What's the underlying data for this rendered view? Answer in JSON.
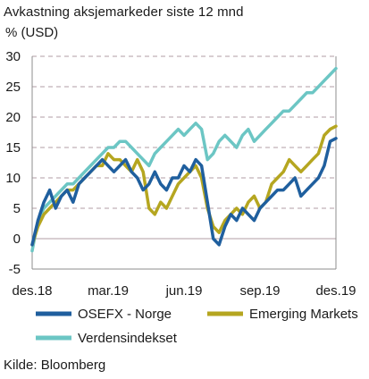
{
  "header": {
    "title": "Avkastning aksjemarkeder siste 12 mnd",
    "unit": "% (USD)"
  },
  "footer": {
    "source": "Kilde: Bloomberg"
  },
  "colors": {
    "osefx": "#1f5f9e",
    "em": "#b5a620",
    "world": "#6cc6c4",
    "grid": "#b09ca6",
    "axis": "#8c8c8c"
  },
  "chart_data": {
    "type": "line",
    "title": "Avkastning aksjemarkeder siste 12 mnd",
    "ylabel": "% (USD)",
    "ylim": [
      -5,
      30
    ],
    "yticks": [
      -5,
      0,
      5,
      10,
      15,
      20,
      25,
      30
    ],
    "xlim": [
      0,
      52
    ],
    "xtick_positions": [
      0,
      13,
      26,
      39,
      52
    ],
    "xtick_labels": [
      "des.18",
      "mar.19",
      "jun.19",
      "sep.19",
      "des.19"
    ],
    "grid": true,
    "legend": "bottom",
    "series": [
      {
        "name": "OSEFX - Norge",
        "color_key": "osefx",
        "x": [
          0,
          1,
          2,
          3,
          4,
          5,
          6,
          7,
          8,
          9,
          10,
          11,
          12,
          13,
          14,
          15,
          16,
          17,
          18,
          19,
          20,
          21,
          22,
          23,
          24,
          25,
          26,
          27,
          28,
          29,
          30,
          31,
          32,
          33,
          34,
          35,
          36,
          37,
          38,
          39,
          40,
          41,
          42,
          43,
          44,
          45,
          46,
          47,
          48,
          49,
          50,
          51,
          52
        ],
        "values": [
          -1,
          3,
          6,
          8,
          5,
          7,
          8,
          6,
          9,
          10,
          11,
          12,
          13,
          12,
          11,
          12,
          13,
          11,
          10,
          8,
          9,
          11,
          9,
          8,
          10,
          10,
          12,
          11,
          13,
          12,
          6,
          0,
          -1,
          2,
          4,
          3,
          5,
          4,
          3,
          5,
          6,
          7,
          8,
          8,
          9,
          10,
          7,
          8,
          9,
          10,
          12,
          16,
          16.5
        ]
      },
      {
        "name": "Emerging Markets",
        "color_key": "em",
        "x": [
          0,
          1,
          2,
          3,
          4,
          5,
          6,
          7,
          8,
          9,
          10,
          11,
          12,
          13,
          14,
          15,
          16,
          17,
          18,
          19,
          20,
          21,
          22,
          23,
          24,
          25,
          26,
          27,
          28,
          29,
          30,
          31,
          32,
          33,
          34,
          35,
          36,
          37,
          38,
          39,
          40,
          41,
          42,
          43,
          44,
          45,
          46,
          47,
          48,
          49,
          50,
          51,
          52
        ],
        "values": [
          -1,
          2,
          4,
          5,
          6,
          7,
          8,
          8,
          9,
          10,
          11,
          12,
          12,
          14,
          13,
          13,
          12,
          11,
          13,
          11,
          5,
          4,
          6,
          5,
          7,
          9,
          10,
          11,
          12,
          10,
          5,
          2,
          1,
          3,
          4,
          5,
          4,
          6,
          7,
          5,
          6,
          9,
          10,
          11,
          13,
          12,
          11,
          12,
          13,
          14,
          17,
          18,
          18.5
        ]
      },
      {
        "name": "Verdensindekset",
        "color_key": "world",
        "x": [
          0,
          1,
          2,
          3,
          4,
          5,
          6,
          7,
          8,
          9,
          10,
          11,
          12,
          13,
          14,
          15,
          16,
          17,
          18,
          19,
          20,
          21,
          22,
          23,
          24,
          25,
          26,
          27,
          28,
          29,
          30,
          31,
          32,
          33,
          34,
          35,
          36,
          37,
          38,
          39,
          40,
          41,
          42,
          43,
          44,
          45,
          46,
          47,
          48,
          49,
          50,
          51,
          52
        ],
        "values": [
          -2,
          3,
          5,
          6,
          7,
          8,
          9,
          9,
          10,
          11,
          12,
          13,
          14,
          15,
          15,
          16,
          16,
          15,
          14,
          13,
          12,
          14,
          15,
          16,
          17,
          18,
          17,
          18,
          19,
          18,
          13,
          14,
          16,
          17,
          16,
          15,
          17,
          18,
          16,
          17,
          18,
          19,
          20,
          21,
          21,
          22,
          23,
          24,
          24,
          25,
          26,
          27,
          28
        ]
      }
    ]
  }
}
